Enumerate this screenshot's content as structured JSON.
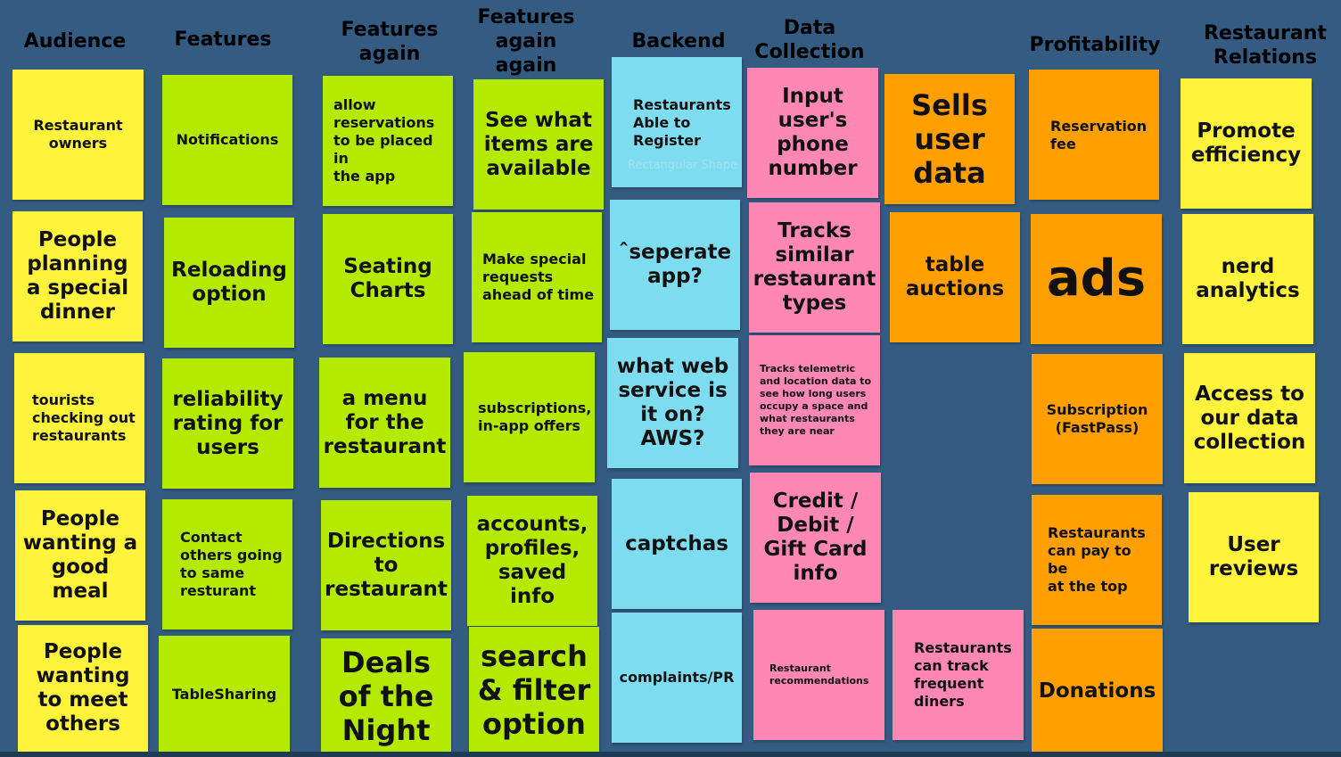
{
  "colors": {
    "background": "#345c83",
    "yellow": "#fff33b",
    "green": "#b3ea00",
    "blue": "#7ddcef",
    "pink": "#fe87b4",
    "orange": "#ff9f00"
  },
  "headers": {
    "audience": "Audience",
    "features": "Features",
    "features_again": "Features\nagain",
    "features_again_again": "Features\nagain\nagain",
    "backend": "Backend",
    "data_collection": "Data\nCollection",
    "profitability": "Profitability",
    "restaurant_relations": "Restaurant\nRelations"
  },
  "audience": [
    "Restaurant\nowners",
    "People\nplanning\na special\ndinner",
    "tourists\nchecking out\nrestaurants",
    "People\nwanting a\ngood\nmeal",
    "People\nwanting\nto meet\nothers"
  ],
  "features": [
    "Notifications",
    "Reloading\noption",
    "reliability\nrating for\nusers",
    "Contact\nothers going\nto same\nresturant",
    "TableSharing"
  ],
  "features_again": [
    "allow\nreservations\nto be placed in\nthe app",
    "Seating\nCharts",
    "a menu\nfor the\nrestaurant",
    "Directions\nto\nrestaurant",
    "Deals\nof the\nNight"
  ],
  "features_again_again": [
    "See what\nitems are\navailable",
    "Make special\nrequests\nahead of time",
    "subscriptions,\nin-app offers",
    "accounts,\nprofiles,\nsaved info",
    "search\n& filter\noption"
  ],
  "backend": [
    "Restaurants\nAble to\nRegister",
    "ˆseperate\napp?",
    "what web\nservice is\nit on?\nAWS?",
    "captchas",
    "complaints/PR"
  ],
  "backend_ghost": "Rectangular Shape",
  "data_collection": [
    "Input\nuser's\nphone\nnumber",
    "Tracks\nsimilar\nrestaurant\ntypes",
    "Tracks telemetric\nand location data to\nsee how long users\noccupy a space and\nwhat restaurants\nthey are near",
    "Credit /\nDebit /\nGift Card\ninfo",
    "Restaurant\nrecommendations"
  ],
  "data_sales": [
    "Sells\nuser\ndata",
    "table\nauctions",
    "Restaurants\ncan track\nfrequent\ndiners"
  ],
  "profitability": [
    "Reservation\nfee",
    "ads",
    "Subscription\n(FastPass)",
    "Restaurants\ncan pay to be\nat the top",
    "Donations"
  ],
  "restaurant_relations": [
    "Promote\nefficiency",
    "nerd\nanalytics",
    "Access to\nour data\ncollection",
    "User\nreviews"
  ]
}
